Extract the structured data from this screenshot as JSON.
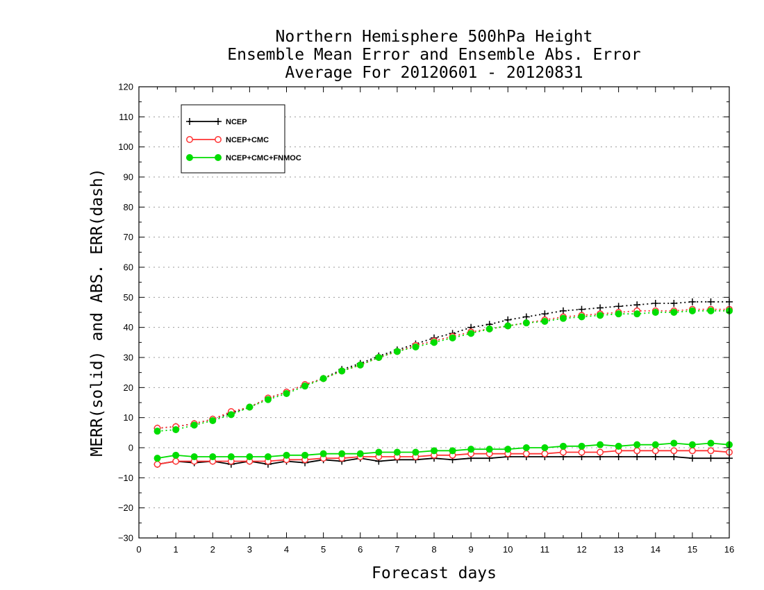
{
  "chart_data": {
    "type": "line",
    "title": [
      "Northern Hemisphere 500hPa Height",
      "Ensemble Mean Error and Ensemble Abs. Error",
      "Average For 20120601 - 20120831"
    ],
    "xlabel": "Forecast days",
    "ylabel": "MERR(solid) and ABS. ERR(dash)",
    "xlim": [
      0,
      16
    ],
    "ylim": [
      -30,
      120
    ],
    "xticks": [
      0,
      1,
      2,
      3,
      4,
      5,
      6,
      7,
      8,
      9,
      10,
      11,
      12,
      13,
      14,
      15,
      16
    ],
    "yticks": [
      -30,
      -20,
      -10,
      0,
      10,
      20,
      30,
      40,
      50,
      60,
      70,
      80,
      90,
      100,
      110,
      120
    ],
    "grid": "horizontal dotted",
    "legend_placement": "top-left",
    "x": [
      0.5,
      1,
      1.5,
      2,
      2.5,
      3,
      3.5,
      4,
      4.5,
      5,
      5.5,
      6,
      6.5,
      7,
      7.5,
      8,
      8.5,
      9,
      9.5,
      10,
      10.5,
      11,
      11.5,
      12,
      12.5,
      13,
      13.5,
      14,
      14.5,
      15,
      15.5,
      16
    ],
    "series": [
      {
        "name": "NCEP",
        "color": "#000000",
        "marker": "plus",
        "mean_error": [
          -5.5,
          -4.5,
          -5,
          -4.5,
          -5.5,
          -4.5,
          -5.5,
          -4.5,
          -5,
          -4,
          -4.5,
          -3.5,
          -4.5,
          -4,
          -4,
          -3.5,
          -4,
          -3.5,
          -3.5,
          -3,
          -3,
          -3,
          -3,
          -3,
          -3,
          -3,
          -3,
          -3,
          -3,
          -3.5,
          -3.5,
          -3.5
        ],
        "abs_error": [
          6.5,
          7,
          8,
          9.5,
          11.5,
          13.5,
          16.5,
          18.5,
          21,
          23,
          26,
          28,
          30.5,
          32.5,
          34.5,
          36.5,
          38,
          40,
          41,
          42.5,
          43.5,
          44.5,
          45.5,
          46,
          46.5,
          47,
          47.5,
          48,
          48,
          48.5,
          48.5,
          48.5
        ]
      },
      {
        "name": "NCEP+CMC",
        "color": "#ff3333",
        "marker": "open-circle",
        "mean_error": [
          -5.5,
          -4.5,
          -4.5,
          -4.5,
          -4.5,
          -4.5,
          -4.5,
          -4,
          -4,
          -3.5,
          -3.5,
          -3,
          -3,
          -3,
          -3,
          -2.5,
          -2.5,
          -2,
          -2,
          -2,
          -2,
          -2,
          -1.5,
          -1.5,
          -1.5,
          -1,
          -1,
          -1,
          -1,
          -1,
          -1,
          -1.5
        ],
        "abs_error": [
          6.5,
          7,
          8,
          9.5,
          12,
          13.5,
          16.5,
          18.5,
          21,
          23,
          25.5,
          27.5,
          30,
          32,
          34,
          35.5,
          37,
          38.5,
          39.5,
          40.5,
          41.5,
          42.5,
          43.5,
          44,
          44.5,
          45,
          45.5,
          45.5,
          45.5,
          46,
          46,
          46
        ]
      },
      {
        "name": "NCEP+CMC+FNMOC",
        "color": "#00dd00",
        "marker": "filled-circle",
        "mean_error": [
          -3.5,
          -2.5,
          -3,
          -3,
          -3,
          -3,
          -3,
          -2.5,
          -2.5,
          -2,
          -2,
          -2,
          -1.5,
          -1.5,
          -1.5,
          -1,
          -1,
          -0.5,
          -0.5,
          -0.5,
          0,
          0,
          0.5,
          0.5,
          1,
          0.5,
          1,
          1,
          1.5,
          1,
          1.5,
          1
        ],
        "abs_error": [
          5.5,
          6,
          7.5,
          9,
          11,
          13.5,
          16,
          18,
          20.5,
          23,
          25.5,
          27.5,
          30,
          32,
          33.5,
          35,
          36.5,
          38,
          39.5,
          40.5,
          41.5,
          42,
          43,
          43.5,
          44,
          44.5,
          44.5,
          45,
          45,
          45.5,
          45.5,
          45.5
        ]
      }
    ]
  }
}
